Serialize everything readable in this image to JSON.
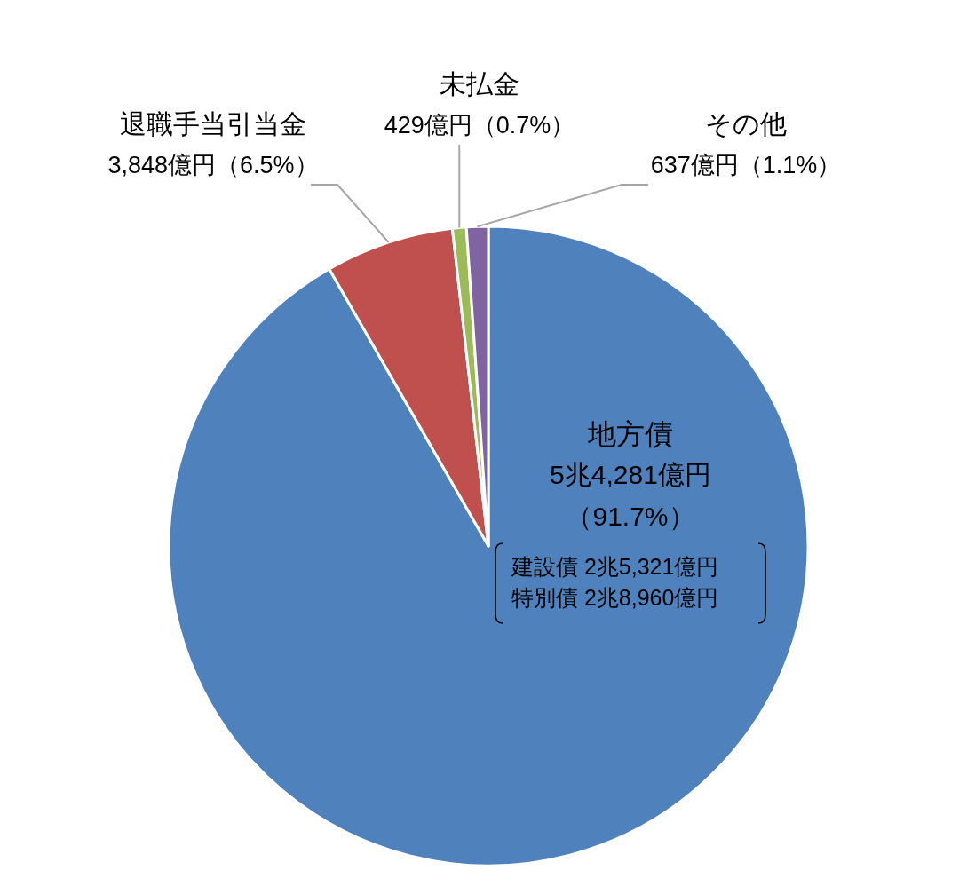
{
  "chart_data": {
    "type": "pie",
    "categories": [
      "地方債",
      "退職手当引当金",
      "未払金",
      "その他"
    ],
    "values": [
      91.7,
      6.5,
      0.7,
      1.1
    ],
    "value_labels": [
      "5兆4,281億円（91.7%）",
      "3,848億円（6.5%）",
      "429億円（0.7%）",
      "637億円（1.1%）"
    ],
    "colors": [
      "#4f81bd",
      "#c0504d",
      "#9bbb59",
      "#8064a2"
    ],
    "annotations": [
      "建設債 2兆5,321億円",
      "特別債 2兆8,960億円"
    ]
  }
}
